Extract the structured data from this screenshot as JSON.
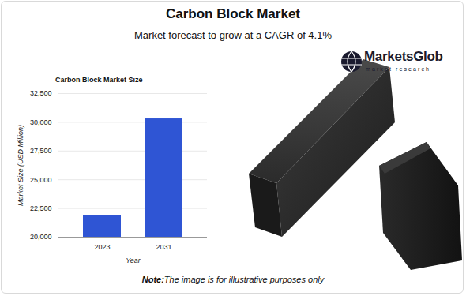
{
  "header": {
    "title": "Carbon Block Market",
    "subtitle": "Market forecast to grow at a CAGR of 4.1%"
  },
  "brand": {
    "name": "MarketsGlob",
    "tagline": "market research"
  },
  "note": {
    "label": "Note:",
    "text": "The image is for illustrative purposes only"
  },
  "chart_data": {
    "type": "bar",
    "title": "Carbon Block Market Size",
    "x_label": "Year",
    "y_label": "Market Size (USD Million)",
    "categories": [
      "2023",
      "2031"
    ],
    "values": [
      21900,
      30300
    ],
    "color": "#2f55d4",
    "ylim": [
      20000,
      32500
    ],
    "yticks": [
      {
        "value": 20000,
        "label": "20,000"
      },
      {
        "value": 22500,
        "label": "22,500"
      },
      {
        "value": 25000,
        "label": "25,000"
      },
      {
        "value": 27500,
        "label": "27,500"
      },
      {
        "value": 30000,
        "label": "30,000"
      },
      {
        "value": 32500,
        "label": "32,500"
      }
    ],
    "grid": true
  }
}
